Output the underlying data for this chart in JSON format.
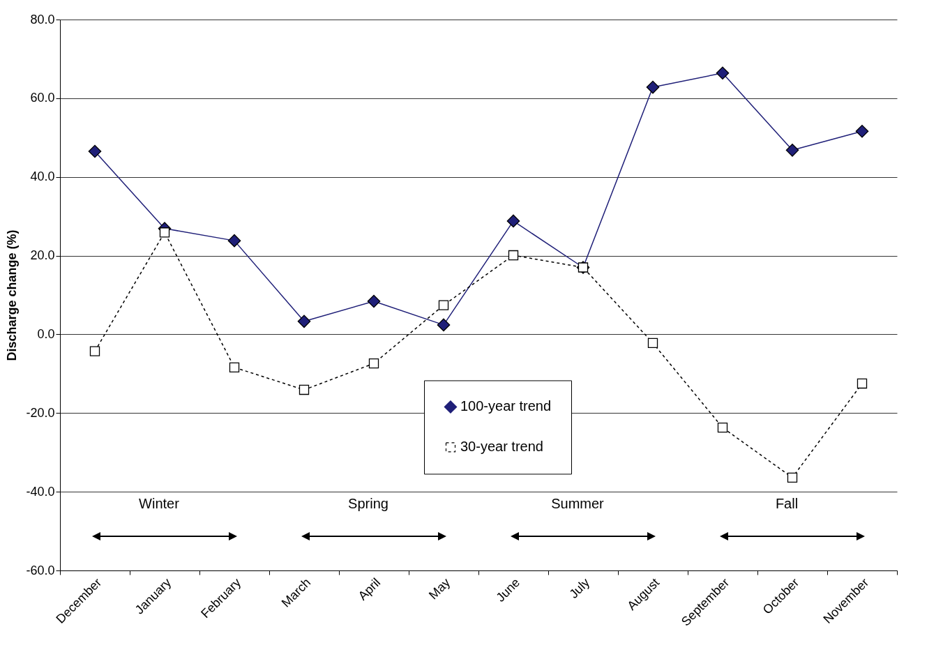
{
  "chart_data": {
    "type": "line",
    "ylabel": "Discharge change (%)",
    "categories": [
      "December",
      "January",
      "February",
      "March",
      "April",
      "May",
      "June",
      "July",
      "August",
      "September",
      "October",
      "November"
    ],
    "series": [
      {
        "name": "100-year trend",
        "color": "#1f1f78",
        "marker": "diamond",
        "line_style": "solid",
        "values": [
          46.5,
          26.9,
          23.8,
          3.3,
          8.4,
          2.4,
          28.8,
          17.0,
          62.8,
          66.4,
          46.8,
          51.6
        ]
      },
      {
        "name": "30-year trend",
        "color": "#000000",
        "marker": "square",
        "line_style": "dashed",
        "values": [
          -4.3,
          25.9,
          -8.4,
          -14.1,
          -7.4,
          7.4,
          20.1,
          17.0,
          -2.2,
          -23.7,
          -36.4,
          -12.5
        ]
      }
    ],
    "ylim": [
      -60,
      80
    ],
    "yticks": [
      {
        "value": -60,
        "label": "-60.0"
      },
      {
        "value": -40,
        "label": "-40.0"
      },
      {
        "value": -20,
        "label": "-20.0"
      },
      {
        "value": 0,
        "label": "0.0"
      },
      {
        "value": 20,
        "label": "20.0"
      },
      {
        "value": 40,
        "label": "40.0"
      },
      {
        "value": 60,
        "label": "60.0"
      },
      {
        "value": 80,
        "label": "80.0"
      }
    ],
    "grid": "y",
    "legend": "bottom",
    "annotations": [
      "Winter",
      "Spring",
      "Summer",
      "Fall"
    ]
  }
}
